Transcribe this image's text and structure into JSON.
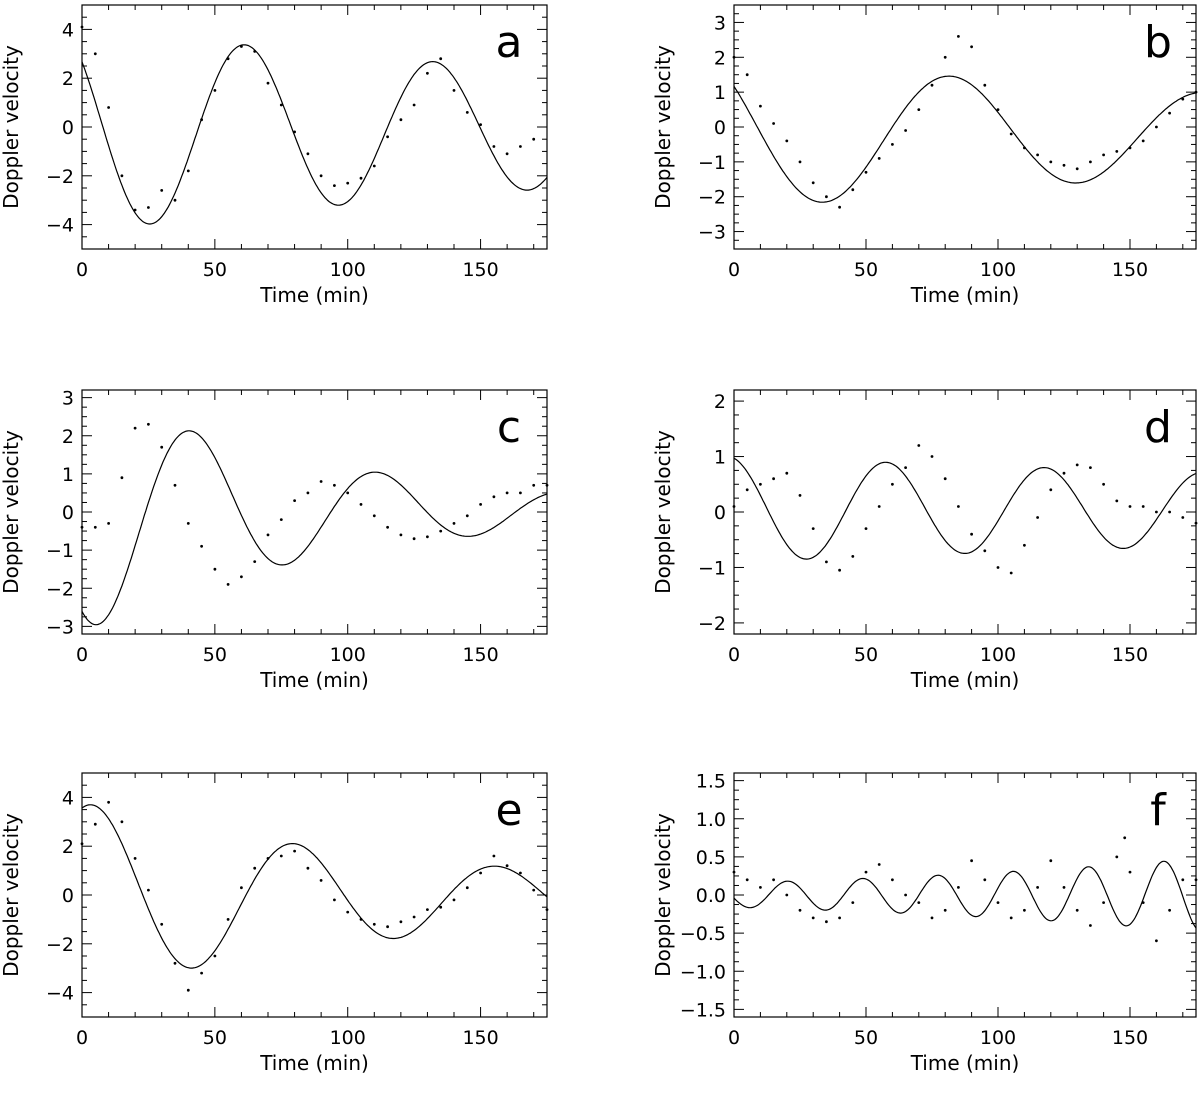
{
  "chart_data": [
    {
      "type": "scatter",
      "panel": "a",
      "title": "",
      "xlabel": "Time (min)",
      "ylabel": "Doppler velocity",
      "xlim": [
        0,
        175
      ],
      "ylim": [
        -5,
        5
      ],
      "xticks": [
        0,
        50,
        100,
        150
      ],
      "yticks": [
        -4,
        -2,
        0,
        2,
        4
      ],
      "ytick_labels": [
        "−4",
        "−2",
        "0",
        "2",
        "4"
      ],
      "series": [
        {
          "name": "fit",
          "kind": "line",
          "model": {
            "offset": -0.1,
            "amp": 4.2,
            "damp_time": 320,
            "period": 71,
            "phase": 0.85
          }
        },
        {
          "name": "observed",
          "kind": "points",
          "points": [
            [
              0,
              4.1
            ],
            [
              5,
              3.0
            ],
            [
              10,
              0.8
            ],
            [
              15,
              -2.0
            ],
            [
              20,
              -3.4
            ],
            [
              25,
              -3.3
            ],
            [
              30,
              -2.6
            ],
            [
              35,
              -3.0
            ],
            [
              40,
              -1.8
            ],
            [
              45,
              0.3
            ],
            [
              50,
              1.5
            ],
            [
              55,
              2.8
            ],
            [
              60,
              3.3
            ],
            [
              65,
              3.1
            ],
            [
              70,
              1.8
            ],
            [
              75,
              0.9
            ],
            [
              80,
              -0.2
            ],
            [
              85,
              -1.1
            ],
            [
              90,
              -2.0
            ],
            [
              95,
              -2.4
            ],
            [
              100,
              -2.3
            ],
            [
              105,
              -2.1
            ],
            [
              110,
              -1.6
            ],
            [
              115,
              -0.4
            ],
            [
              120,
              0.3
            ],
            [
              125,
              0.9
            ],
            [
              130,
              2.2
            ],
            [
              135,
              2.8
            ],
            [
              140,
              1.5
            ],
            [
              145,
              0.6
            ],
            [
              150,
              0.1
            ],
            [
              155,
              -0.8
            ],
            [
              160,
              -1.1
            ],
            [
              165,
              -0.8
            ],
            [
              170,
              -0.5
            ]
          ]
        }
      ]
    },
    {
      "type": "scatter",
      "panel": "b",
      "title": "",
      "xlabel": "Time (min)",
      "ylabel": "Doppler velocity",
      "xlim": [
        0,
        175
      ],
      "ylim": [
        -3.5,
        3.5
      ],
      "xticks": [
        0,
        50,
        100,
        150
      ],
      "yticks": [
        -3,
        -2,
        -1,
        0,
        1,
        2,
        3
      ],
      "ytick_labels": [
        "−3",
        "−2",
        "−1",
        "0",
        "1",
        "2",
        "3"
      ],
      "series": [
        {
          "name": "fit",
          "kind": "line",
          "model": {
            "offset": -0.2,
            "amp": 2.2,
            "damp_time": 290,
            "period": 96,
            "phase": 0.9
          }
        },
        {
          "name": "observed",
          "kind": "points",
          "points": [
            [
              0,
              2.0
            ],
            [
              5,
              1.5
            ],
            [
              10,
              0.6
            ],
            [
              15,
              0.1
            ],
            [
              20,
              -0.4
            ],
            [
              25,
              -1.0
            ],
            [
              30,
              -1.6
            ],
            [
              35,
              -2.0
            ],
            [
              40,
              -2.3
            ],
            [
              45,
              -1.8
            ],
            [
              50,
              -1.3
            ],
            [
              55,
              -0.9
            ],
            [
              60,
              -0.5
            ],
            [
              65,
              -0.1
            ],
            [
              70,
              0.5
            ],
            [
              75,
              1.2
            ],
            [
              80,
              2.0
            ],
            [
              85,
              2.6
            ],
            [
              90,
              2.3
            ],
            [
              95,
              1.2
            ],
            [
              100,
              0.5
            ],
            [
              105,
              -0.2
            ],
            [
              110,
              -0.6
            ],
            [
              115,
              -0.8
            ],
            [
              120,
              -1.0
            ],
            [
              125,
              -1.1
            ],
            [
              130,
              -1.2
            ],
            [
              135,
              -1.0
            ],
            [
              140,
              -0.8
            ],
            [
              145,
              -0.7
            ],
            [
              150,
              -0.6
            ],
            [
              155,
              -0.4
            ],
            [
              160,
              0.0
            ],
            [
              165,
              0.4
            ],
            [
              170,
              0.8
            ],
            [
              175,
              1.0
            ]
          ]
        }
      ]
    },
    {
      "type": "scatter",
      "panel": "c",
      "title": "",
      "xlabel": "Time (min)",
      "ylabel": "Doppler velocity",
      "xlim": [
        0,
        175
      ],
      "ylim": [
        -3.2,
        3.2
      ],
      "xticks": [
        0,
        50,
        100,
        150
      ],
      "yticks": [
        -3,
        -2,
        -1,
        0,
        1,
        2,
        3
      ],
      "ytick_labels": [
        "−3",
        "−2",
        "−1",
        "0",
        "1",
        "2",
        "3"
      ],
      "series": [
        {
          "name": "fit",
          "kind": "line",
          "model": {
            "offset": 0.05,
            "amp": 3.2,
            "damp_time": 95,
            "period": 70,
            "phase": 2.55
          }
        },
        {
          "name": "observed",
          "kind": "points",
          "points": [
            [
              0,
              -0.4
            ],
            [
              5,
              -0.4
            ],
            [
              10,
              -0.3
            ],
            [
              15,
              0.9
            ],
            [
              20,
              2.2
            ],
            [
              25,
              2.3
            ],
            [
              30,
              1.7
            ],
            [
              35,
              0.7
            ],
            [
              40,
              -0.3
            ],
            [
              45,
              -0.9
            ],
            [
              50,
              -1.5
            ],
            [
              55,
              -1.9
            ],
            [
              60,
              -1.7
            ],
            [
              65,
              -1.3
            ],
            [
              70,
              -0.6
            ],
            [
              75,
              -0.2
            ],
            [
              80,
              0.3
            ],
            [
              85,
              0.5
            ],
            [
              90,
              0.8
            ],
            [
              95,
              0.7
            ],
            [
              100,
              0.5
            ],
            [
              105,
              0.2
            ],
            [
              110,
              -0.1
            ],
            [
              115,
              -0.4
            ],
            [
              120,
              -0.6
            ],
            [
              125,
              -0.7
            ],
            [
              130,
              -0.65
            ],
            [
              135,
              -0.5
            ],
            [
              140,
              -0.3
            ],
            [
              145,
              -0.1
            ],
            [
              150,
              0.2
            ],
            [
              155,
              0.4
            ],
            [
              160,
              0.5
            ],
            [
              165,
              0.5
            ],
            [
              170,
              0.7
            ],
            [
              175,
              0.7
            ]
          ]
        }
      ]
    },
    {
      "type": "scatter",
      "panel": "d",
      "title": "",
      "xlabel": "Time (min)",
      "ylabel": "Doppler velocity",
      "xlim": [
        0,
        175
      ],
      "ylim": [
        -2.2,
        2.2
      ],
      "xticks": [
        0,
        50,
        100,
        150
      ],
      "yticks": [
        -2,
        -1,
        0,
        1,
        2
      ],
      "ytick_labels": [
        "−2",
        "−1",
        "0",
        "1",
        "2"
      ],
      "series": [
        {
          "name": "fit",
          "kind": "line",
          "model": {
            "offset": 0.05,
            "amp": 0.95,
            "damp_time": 500,
            "period": 60,
            "phase": 0.25
          }
        },
        {
          "name": "observed",
          "kind": "points",
          "points": [
            [
              0,
              0.1
            ],
            [
              5,
              0.4
            ],
            [
              10,
              0.5
            ],
            [
              15,
              0.6
            ],
            [
              20,
              0.7
            ],
            [
              25,
              0.3
            ],
            [
              30,
              -0.3
            ],
            [
              35,
              -0.9
            ],
            [
              40,
              -1.05
            ],
            [
              45,
              -0.8
            ],
            [
              50,
              -0.3
            ],
            [
              55,
              0.1
            ],
            [
              60,
              0.5
            ],
            [
              65,
              0.8
            ],
            [
              70,
              1.2
            ],
            [
              75,
              1.0
            ],
            [
              80,
              0.6
            ],
            [
              85,
              0.1
            ],
            [
              90,
              -0.4
            ],
            [
              95,
              -0.7
            ],
            [
              100,
              -1.0
            ],
            [
              105,
              -1.1
            ],
            [
              110,
              -0.6
            ],
            [
              115,
              -0.1
            ],
            [
              120,
              0.4
            ],
            [
              125,
              0.7
            ],
            [
              130,
              0.85
            ],
            [
              135,
              0.8
            ],
            [
              140,
              0.5
            ],
            [
              145,
              0.2
            ],
            [
              150,
              0.1
            ],
            [
              155,
              0.1
            ],
            [
              160,
              0.0
            ],
            [
              165,
              0.0
            ],
            [
              170,
              -0.1
            ],
            [
              175,
              -0.2
            ]
          ]
        }
      ]
    },
    {
      "type": "scatter",
      "panel": "e",
      "title": "",
      "xlabel": "Time (min)",
      "ylabel": "Doppler velocity",
      "xlim": [
        0,
        175
      ],
      "ylim": [
        -5,
        5
      ],
      "xticks": [
        0,
        50,
        100,
        150
      ],
      "yticks": [
        -4,
        -2,
        0,
        2,
        4
      ],
      "ytick_labels": [
        "−4",
        "−2",
        "0",
        "2",
        "4"
      ],
      "series": [
        {
          "name": "fit",
          "kind": "line",
          "model": {
            "offset": -0.1,
            "amp": 3.9,
            "damp_time": 140,
            "period": 76,
            "phase": -0.35
          }
        },
        {
          "name": "observed",
          "kind": "points",
          "points": [
            [
              0,
              2.1
            ],
            [
              5,
              2.9
            ],
            [
              10,
              3.8
            ],
            [
              15,
              3.0
            ],
            [
              20,
              1.5
            ],
            [
              25,
              0.2
            ],
            [
              30,
              -1.2
            ],
            [
              35,
              -2.8
            ],
            [
              40,
              -3.9
            ],
            [
              45,
              -3.2
            ],
            [
              50,
              -2.5
            ],
            [
              55,
              -1.0
            ],
            [
              60,
              0.3
            ],
            [
              65,
              1.1
            ],
            [
              70,
              1.5
            ],
            [
              75,
              1.6
            ],
            [
              80,
              1.8
            ],
            [
              85,
              1.1
            ],
            [
              90,
              0.6
            ],
            [
              95,
              -0.2
            ],
            [
              100,
              -0.7
            ],
            [
              105,
              -1.0
            ],
            [
              110,
              -1.2
            ],
            [
              115,
              -1.3
            ],
            [
              120,
              -1.1
            ],
            [
              125,
              -0.9
            ],
            [
              130,
              -0.6
            ],
            [
              135,
              -0.5
            ],
            [
              140,
              -0.2
            ],
            [
              145,
              0.3
            ],
            [
              150,
              0.9
            ],
            [
              155,
              1.6
            ],
            [
              160,
              1.2
            ],
            [
              165,
              0.9
            ],
            [
              170,
              0.2
            ],
            [
              175,
              -0.6
            ]
          ]
        }
      ]
    },
    {
      "type": "scatter",
      "panel": "f",
      "title": "",
      "xlabel": "Time (min)",
      "ylabel": "Doppler velocity",
      "xlim": [
        0,
        175
      ],
      "ylim": [
        -1.6,
        1.6
      ],
      "xticks": [
        0,
        50,
        100,
        150
      ],
      "yticks": [
        -1.5,
        -1.0,
        -0.5,
        0.0,
        0.5,
        1.0,
        1.5
      ],
      "ytick_labels": [
        "−1.5",
        "−1.0",
        "−0.5",
        "0.0",
        "0.5",
        "1.0",
        "1.5"
      ],
      "series": [
        {
          "name": "fit",
          "kind": "line",
          "model": {
            "offset": 0.0,
            "amp": 0.16,
            "growth_time": 160,
            "period": 28.5,
            "phase": 1.83
          }
        },
        {
          "name": "observed",
          "kind": "points",
          "points": [
            [
              0,
              0.3
            ],
            [
              5,
              0.2
            ],
            [
              10,
              0.1
            ],
            [
              15,
              0.2
            ],
            [
              20,
              0.0
            ],
            [
              25,
              -0.2
            ],
            [
              30,
              -0.3
            ],
            [
              35,
              -0.35
            ],
            [
              40,
              -0.3
            ],
            [
              45,
              -0.1
            ],
            [
              50,
              0.3
            ],
            [
              55,
              0.4
            ],
            [
              60,
              0.2
            ],
            [
              65,
              0.0
            ],
            [
              70,
              -0.1
            ],
            [
              75,
              -0.3
            ],
            [
              80,
              -0.2
            ],
            [
              85,
              0.1
            ],
            [
              90,
              0.45
            ],
            [
              95,
              0.2
            ],
            [
              100,
              -0.1
            ],
            [
              105,
              -0.3
            ],
            [
              110,
              -0.2
            ],
            [
              115,
              0.1
            ],
            [
              120,
              0.45
            ],
            [
              125,
              0.1
            ],
            [
              130,
              -0.2
            ],
            [
              135,
              -0.4
            ],
            [
              140,
              -0.1
            ],
            [
              145,
              0.5
            ],
            [
              148,
              0.75
            ],
            [
              150,
              0.3
            ],
            [
              155,
              -0.1
            ],
            [
              160,
              -0.6
            ],
            [
              165,
              -0.2
            ],
            [
              170,
              0.2
            ],
            [
              175,
              0.2
            ]
          ]
        }
      ]
    }
  ]
}
